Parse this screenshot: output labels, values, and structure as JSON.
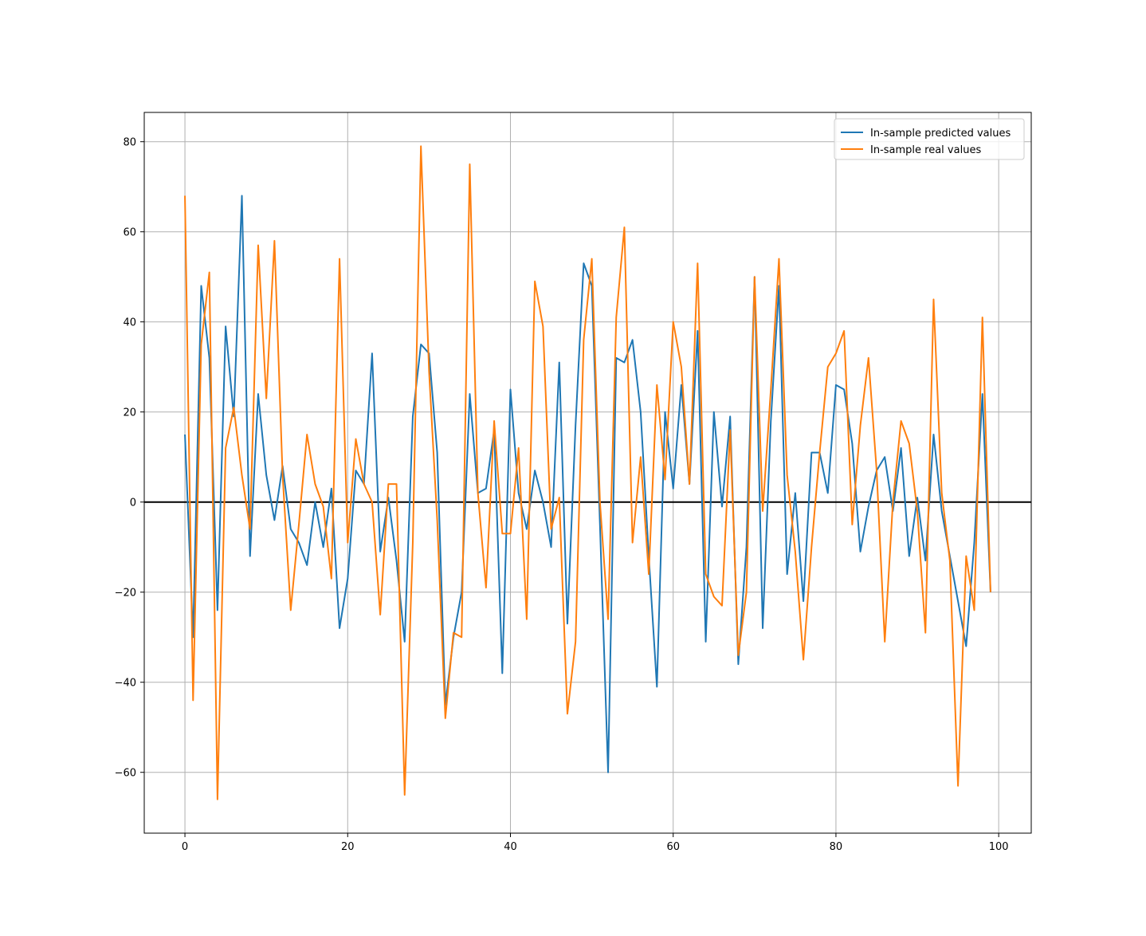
{
  "chart_data": {
    "type": "line",
    "title": "",
    "xlabel": "",
    "ylabel": "",
    "xlim": [
      -5,
      104
    ],
    "ylim": [
      -73.5,
      86.5
    ],
    "xticks": [
      0,
      20,
      40,
      60,
      80,
      100
    ],
    "yticks": [
      -60,
      -40,
      -20,
      0,
      20,
      40,
      60,
      80
    ],
    "grid": true,
    "zero_line": 0,
    "legend": "top-right",
    "x": [
      0,
      1,
      2,
      3,
      4,
      5,
      6,
      7,
      8,
      9,
      10,
      11,
      12,
      13,
      14,
      15,
      16,
      17,
      18,
      19,
      20,
      21,
      22,
      23,
      24,
      25,
      26,
      27,
      28,
      29,
      30,
      31,
      32,
      33,
      34,
      35,
      36,
      37,
      38,
      39,
      40,
      41,
      42,
      43,
      44,
      45,
      46,
      47,
      48,
      49,
      50,
      51,
      52,
      53,
      54,
      55,
      56,
      57,
      58,
      59,
      60,
      61,
      62,
      63,
      64,
      65,
      66,
      67,
      68,
      69,
      70,
      71,
      72,
      73,
      74,
      75,
      76,
      77,
      78,
      79,
      80,
      81,
      82,
      83,
      84,
      85,
      86,
      87,
      88,
      89,
      90,
      91,
      92,
      93,
      94,
      95,
      96,
      97,
      98,
      99
    ],
    "series": [
      {
        "name": "In-sample predicted values",
        "color": "#1f77b4",
        "values": [
          15,
          -30,
          48,
          32,
          -24,
          39,
          19,
          68,
          -12,
          24,
          6,
          -4,
          8,
          -6,
          -9,
          -14,
          0,
          -10,
          3,
          -28,
          -17,
          7,
          4,
          33,
          -11,
          1,
          -13,
          -31,
          19,
          35,
          33,
          11,
          -45,
          -30,
          -20,
          24,
          2,
          3,
          16,
          -38,
          25,
          2,
          -6,
          7,
          0,
          -10,
          31,
          -27,
          17,
          53,
          48,
          -5,
          -60,
          32,
          31,
          36,
          20,
          -12,
          -41,
          20,
          3,
          26,
          4,
          38,
          -31,
          20,
          -1,
          19,
          -36,
          -10,
          50,
          -28,
          18,
          48,
          -16,
          2,
          -22,
          11,
          11,
          2,
          26,
          25,
          13,
          -11,
          -1,
          7,
          10,
          -2,
          12,
          -12,
          1,
          -13,
          15,
          -2,
          -12,
          -22,
          -32,
          -9,
          24,
          -20
        ]
      },
      {
        "name": "In-sample real values",
        "color": "#ff7f0e",
        "values": [
          68,
          -44,
          35,
          51,
          -66,
          12,
          21,
          6,
          -6,
          57,
          23,
          58,
          6,
          -24,
          -5,
          15,
          4,
          -1,
          -17,
          54,
          -9,
          14,
          4,
          0,
          -25,
          4,
          4,
          -65,
          -9,
          79,
          29,
          -4,
          -48,
          -29,
          -30,
          75,
          2,
          -19,
          18,
          -7,
          -7,
          12,
          -26,
          49,
          39,
          -6,
          1,
          -47,
          -31,
          36,
          54,
          0,
          -26,
          41,
          61,
          -9,
          10,
          -16,
          26,
          5,
          40,
          30,
          4,
          53,
          -16,
          -21,
          -23,
          16,
          -34,
          -20,
          50,
          -2,
          25,
          54,
          6,
          -11,
          -35,
          -10,
          11,
          30,
          33,
          38,
          -5,
          17,
          32,
          7,
          -31,
          0,
          18,
          13,
          -2,
          -29,
          45,
          2,
          -13,
          -63,
          -12,
          -24,
          41,
          -20
        ]
      }
    ]
  }
}
